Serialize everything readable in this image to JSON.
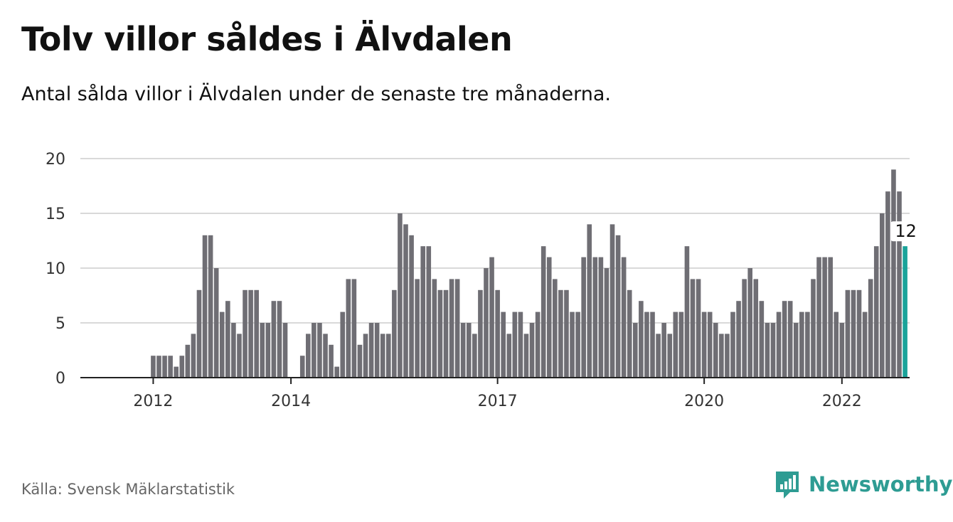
{
  "header": {
    "title": "Tolv villor såldes i Älvdalen",
    "subtitle": "Antal sålda villor i Älvdalen under de senaste tre månaderna."
  },
  "footer": {
    "source": "Källa: Svensk Mäklarstatistik",
    "brand": "Newsworthy",
    "brand_icon": "newsworthy-logo-icon"
  },
  "colors": {
    "bar": "#6f6e74",
    "highlight": "#1aa39a",
    "grid": "#d9d9d9",
    "axis": "#222222",
    "brand": "#2e9c93"
  },
  "chart_data": {
    "type": "bar",
    "ylim": [
      0,
      20
    ],
    "yticks": [
      0,
      5,
      10,
      15,
      20
    ],
    "grid": true,
    "start": "2011-07",
    "xticks": [
      {
        "label": "2012",
        "index": 6
      },
      {
        "label": "2014",
        "index": 30
      },
      {
        "label": "2017",
        "index": 66
      },
      {
        "label": "2020",
        "index": 102
      },
      {
        "label": "2022",
        "index": 126
      }
    ],
    "values": [
      0,
      0,
      0,
      0,
      0,
      0,
      2,
      2,
      2,
      2,
      1,
      2,
      3,
      4,
      8,
      13,
      13,
      10,
      6,
      7,
      5,
      4,
      8,
      8,
      8,
      5,
      5,
      7,
      7,
      5,
      0,
      0,
      2,
      4,
      5,
      5,
      4,
      3,
      1,
      6,
      9,
      9,
      3,
      4,
      5,
      5,
      4,
      4,
      8,
      15,
      14,
      13,
      9,
      12,
      12,
      9,
      8,
      8,
      9,
      9,
      5,
      5,
      4,
      8,
      10,
      11,
      8,
      6,
      4,
      6,
      6,
      4,
      5,
      6,
      12,
      11,
      9,
      8,
      8,
      6,
      6,
      11,
      14,
      11,
      11,
      10,
      14,
      13,
      11,
      8,
      5,
      7,
      6,
      6,
      4,
      5,
      4,
      6,
      6,
      12,
      9,
      9,
      6,
      6,
      5,
      4,
      4,
      6,
      7,
      9,
      10,
      9,
      7,
      5,
      5,
      6,
      7,
      7,
      5,
      6,
      6,
      9,
      11,
      11,
      11,
      6,
      5,
      8,
      8,
      8,
      6,
      9,
      12,
      15,
      17,
      19,
      17,
      12
    ],
    "highlight_last": true,
    "last_label": "12"
  }
}
